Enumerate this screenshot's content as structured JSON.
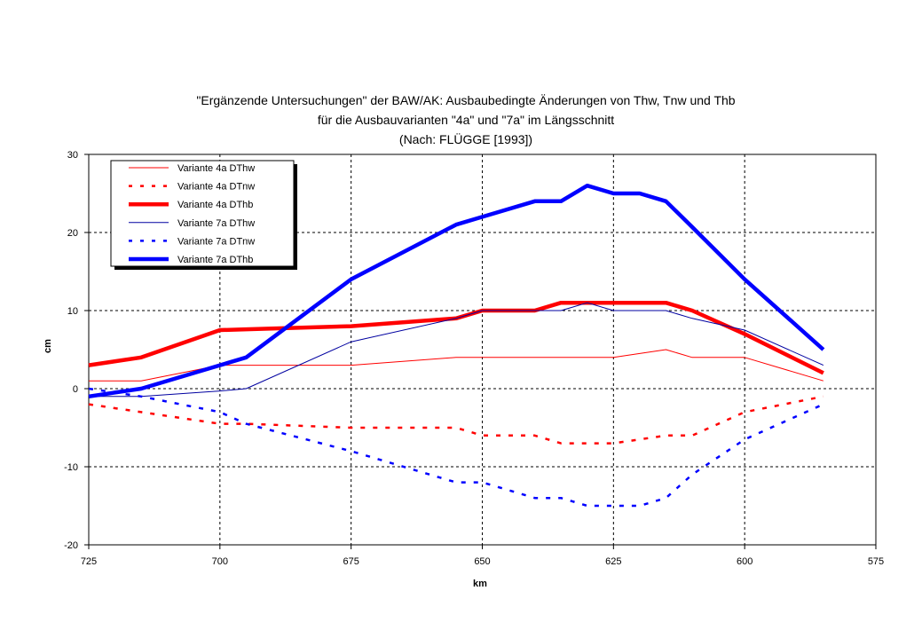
{
  "chart_data": {
    "type": "line",
    "title": [
      "\"Ergänzende Untersuchungen\" der BAW/AK: Ausbaubedingte Änderungen von Thw, Tnw und Thb",
      "für die Ausbauvarianten \"4a\" und \"7a\" im Längsschnitt",
      "(Nach: FLÜGGE [1993])"
    ],
    "xlabel": "km",
    "ylabel": "cm",
    "xlim": [
      725,
      575
    ],
    "x_reversed": true,
    "ylim": [
      -20,
      30
    ],
    "xticks": [
      725,
      700,
      675,
      650,
      625,
      600,
      575
    ],
    "xtick_labels": [
      "725",
      "700",
      "675",
      "650",
      "625",
      "600",
      "575"
    ],
    "yticks": [
      -20,
      -10,
      0,
      10,
      20,
      30
    ],
    "ytick_labels": [
      "-20",
      "-10",
      "0",
      "10",
      "20",
      "30"
    ],
    "grid": true,
    "legend_position": "top-left",
    "x": [
      725,
      715,
      700,
      695,
      675,
      655,
      650,
      640,
      635,
      630,
      625,
      620,
      615,
      610,
      600,
      585
    ],
    "series": [
      {
        "name": "Variante 4a DThw",
        "color": "#ff0000",
        "style": "thin",
        "values": [
          1,
          1,
          3,
          3,
          3,
          4,
          4,
          4,
          4,
          4,
          4,
          4.5,
          5,
          4,
          4,
          1
        ]
      },
      {
        "name": "Variante 4a DTnw",
        "color": "#ff0000",
        "style": "dashed",
        "values": [
          -2,
          -3,
          -4.5,
          -4.5,
          -5,
          -5,
          -6,
          -6,
          -7,
          -7,
          -7,
          -6.5,
          -6,
          -6,
          -3,
          -1
        ]
      },
      {
        "name": "Variante 4a DThb",
        "color": "#ff0000",
        "style": "thick",
        "values": [
          3,
          4,
          7.5,
          7.6,
          8,
          9,
          10,
          10,
          11,
          11,
          11,
          11,
          11,
          10,
          7,
          2
        ]
      },
      {
        "name": "Variante 7a DThw",
        "color": "#0000a0",
        "style": "thin",
        "values": [
          -1,
          -1,
          -0.3,
          0,
          6,
          9,
          10,
          10,
          10,
          11,
          10,
          10,
          10,
          9,
          7.5,
          3
        ]
      },
      {
        "name": "Variante 7a DTnw",
        "color": "#0000ff",
        "style": "dashed",
        "values": [
          0,
          -1,
          -3,
          -4.5,
          -8,
          -12,
          -12,
          -14,
          -14,
          -15,
          -15,
          -15,
          -14,
          -11,
          -6.5,
          -2
        ]
      },
      {
        "name": "Variante 7a DThb",
        "color": "#0000ff",
        "style": "thick",
        "values": [
          -1,
          0,
          3,
          4,
          14,
          21,
          22,
          24,
          24,
          26,
          25,
          25,
          24,
          20.7,
          14,
          5
        ]
      }
    ]
  }
}
